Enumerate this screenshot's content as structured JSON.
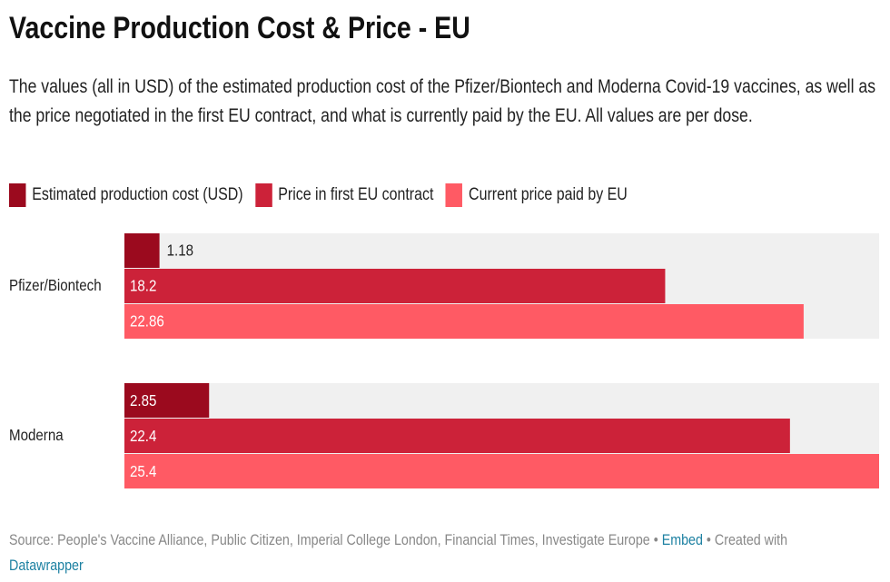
{
  "chart_data": {
    "type": "bar",
    "orientation": "horizontal",
    "title": "Vaccine Production Cost & Price - EU",
    "subtitle": "The values (all in USD) of the estimated production cost of the Pfizer/Biontech and Moderna Covid-19 vaccines, as well as the price negotiated in the first EU contract, and what is currently paid by the EU. All values are per dose.",
    "categories": [
      "Pfizer/Biontech",
      "Moderna"
    ],
    "series": [
      {
        "name": "Estimated production cost (USD)",
        "color": "#9b0a1e",
        "values": [
          1.18,
          2.85
        ]
      },
      {
        "name": "Price in first EU contract",
        "color": "#cc2239",
        "values": [
          18.2,
          22.4
        ]
      },
      {
        "name": "Current price paid by EU",
        "color": "#ff5a64",
        "values": [
          22.86,
          25.4
        ]
      }
    ],
    "xlim": [
      0,
      25.4
    ],
    "footer": {
      "source": "Source: People's Vaccine Alliance, Public Citizen, Imperial College London, Financial Times, Investigate Europe",
      "separator": "•",
      "embed": "Embed",
      "created_with": "Created with",
      "credit": "Datawrapper"
    }
  }
}
